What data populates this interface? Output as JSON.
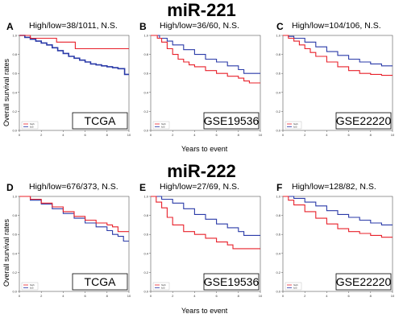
{
  "sections": [
    {
      "title": "miR-221",
      "y_label": "Overall survival rates",
      "x_label": "Years to event"
    },
    {
      "title": "miR-222",
      "y_label": "Overall survival rates",
      "x_label": "Years to event"
    }
  ],
  "colors": {
    "high": "#e8202a",
    "low": "#2a3aa8",
    "axis": "#555555"
  },
  "chart_data": [
    {
      "type": "line",
      "panel": "A",
      "title": "High/low=38/1011, N.S.",
      "dataset": "TCGA",
      "legend": [
        "high",
        "low"
      ],
      "xlim": [
        0,
        10
      ],
      "ylim": [
        0,
        1.0
      ],
      "x_ticks": [
        0,
        2,
        4,
        6,
        8,
        10
      ],
      "y_ticks": [
        0,
        0.2,
        0.4,
        0.6,
        0.8,
        1.0
      ],
      "series": [
        {
          "name": "high",
          "x": [
            0,
            1.0,
            1.0,
            3.4,
            3.4,
            5.1,
            5.1,
            10
          ],
          "y": [
            1.0,
            1.0,
            0.97,
            0.97,
            0.93,
            0.93,
            0.86,
            0.86
          ]
        },
        {
          "name": "low",
          "x": [
            0,
            0.5,
            1,
            1.5,
            2,
            2.5,
            3,
            3.5,
            4,
            4.5,
            5,
            5.5,
            6,
            6.5,
            7,
            7.5,
            8,
            8.5,
            9,
            9.4,
            9.6,
            10
          ],
          "y": [
            1.0,
            0.98,
            0.96,
            0.94,
            0.92,
            0.9,
            0.87,
            0.84,
            0.81,
            0.78,
            0.76,
            0.74,
            0.72,
            0.7,
            0.69,
            0.68,
            0.67,
            0.66,
            0.65,
            0.65,
            0.59,
            0.59
          ]
        }
      ]
    },
    {
      "type": "line",
      "panel": "B",
      "title": "High/low=36/60, N.S.",
      "dataset": "GSE19536",
      "legend": [
        "high",
        "low"
      ],
      "xlim": [
        0,
        10
      ],
      "ylim": [
        0,
        1.0
      ],
      "x_ticks": [
        0,
        2,
        4,
        6,
        8,
        10
      ],
      "y_ticks": [
        0,
        0.2,
        0.4,
        0.6,
        0.8,
        1.0
      ],
      "series": [
        {
          "name": "high",
          "x": [
            0,
            0.6,
            1,
            1.5,
            2,
            2.5,
            3,
            3.5,
            4,
            5,
            6,
            7,
            8,
            8.5,
            9,
            10
          ],
          "y": [
            1.0,
            0.97,
            0.93,
            0.86,
            0.8,
            0.75,
            0.72,
            0.69,
            0.67,
            0.63,
            0.6,
            0.57,
            0.55,
            0.52,
            0.5,
            0.5
          ]
        },
        {
          "name": "low",
          "x": [
            0,
            0.8,
            1.5,
            2,
            3,
            4,
            5,
            6,
            7,
            8,
            8.5,
            10
          ],
          "y": [
            1.0,
            0.97,
            0.94,
            0.9,
            0.85,
            0.8,
            0.75,
            0.72,
            0.68,
            0.64,
            0.6,
            0.6
          ]
        }
      ]
    },
    {
      "type": "line",
      "panel": "C",
      "title": "High/low=104/106, N.S.",
      "dataset": "GSE22220",
      "legend": [
        "high",
        "low"
      ],
      "xlim": [
        0,
        10
      ],
      "ylim": [
        0,
        1.0
      ],
      "x_ticks": [
        0,
        2,
        4,
        6,
        8,
        10
      ],
      "y_ticks": [
        0,
        0.2,
        0.4,
        0.6,
        0.8,
        1.0
      ],
      "series": [
        {
          "name": "high",
          "x": [
            0,
            0.5,
            1,
            1.5,
            2,
            2.5,
            3,
            4,
            5,
            6,
            7,
            8,
            9,
            10
          ],
          "y": [
            1.0,
            0.97,
            0.94,
            0.9,
            0.86,
            0.82,
            0.78,
            0.72,
            0.67,
            0.63,
            0.6,
            0.59,
            0.58,
            0.58
          ]
        },
        {
          "name": "low",
          "x": [
            0,
            0.5,
            1,
            2,
            3,
            4,
            5,
            6,
            7,
            8,
            9,
            10
          ],
          "y": [
            1.0,
            0.99,
            0.97,
            0.93,
            0.88,
            0.83,
            0.79,
            0.75,
            0.72,
            0.7,
            0.68,
            0.68
          ]
        }
      ]
    },
    {
      "type": "line",
      "panel": "D",
      "title": "High/low=676/373, N.S.",
      "dataset": "TCGA",
      "legend": [
        "high",
        "low"
      ],
      "xlim": [
        0,
        10
      ],
      "ylim": [
        0,
        1.0
      ],
      "x_ticks": [
        0,
        2,
        4,
        6,
        8,
        10
      ],
      "y_ticks": [
        0,
        0.2,
        0.4,
        0.6,
        0.8,
        1.0
      ],
      "series": [
        {
          "name": "high",
          "x": [
            0,
            1,
            2,
            3,
            4,
            5,
            6,
            7,
            8,
            8.5,
            9,
            10
          ],
          "y": [
            1.0,
            0.97,
            0.93,
            0.89,
            0.84,
            0.79,
            0.75,
            0.72,
            0.7,
            0.68,
            0.63,
            0.63
          ]
        },
        {
          "name": "low",
          "x": [
            0,
            1,
            2,
            3,
            4,
            5,
            6,
            7,
            8,
            8.5,
            9,
            9.5,
            10
          ],
          "y": [
            1.0,
            0.96,
            0.92,
            0.87,
            0.82,
            0.77,
            0.72,
            0.68,
            0.64,
            0.6,
            0.58,
            0.53,
            0.53
          ]
        }
      ]
    },
    {
      "type": "line",
      "panel": "E",
      "title": "High/low=27/69, N.S.",
      "dataset": "GSE19536",
      "legend": [
        "high",
        "low"
      ],
      "xlim": [
        0,
        10
      ],
      "ylim": [
        0,
        1.0
      ],
      "x_ticks": [
        0,
        2,
        4,
        6,
        8,
        10
      ],
      "y_ticks": [
        0,
        0.2,
        0.4,
        0.6,
        0.8,
        1.0
      ],
      "series": [
        {
          "name": "high",
          "x": [
            0,
            0.5,
            1,
            1.5,
            2,
            3,
            4,
            5,
            6,
            7,
            7.5,
            10
          ],
          "y": [
            1.0,
            0.94,
            0.88,
            0.78,
            0.7,
            0.63,
            0.6,
            0.56,
            0.52,
            0.49,
            0.45,
            0.45
          ]
        },
        {
          "name": "low",
          "x": [
            0,
            1,
            2,
            3,
            4,
            5,
            6,
            7,
            8,
            8.5,
            10
          ],
          "y": [
            1.0,
            0.97,
            0.93,
            0.87,
            0.81,
            0.76,
            0.71,
            0.67,
            0.63,
            0.59,
            0.59
          ]
        }
      ]
    },
    {
      "type": "line",
      "panel": "F",
      "title": "High/low=128/82, N.S.",
      "dataset": "GSE22220",
      "legend": [
        "high",
        "low"
      ],
      "xlim": [
        0,
        10
      ],
      "ylim": [
        0,
        1.0
      ],
      "x_ticks": [
        0,
        2,
        4,
        6,
        8,
        10
      ],
      "y_ticks": [
        0,
        0.2,
        0.4,
        0.6,
        0.8,
        1.0
      ],
      "series": [
        {
          "name": "high",
          "x": [
            0,
            0.5,
            1,
            2,
            3,
            4,
            5,
            6,
            7,
            8,
            9,
            10
          ],
          "y": [
            1.0,
            0.96,
            0.91,
            0.84,
            0.77,
            0.71,
            0.66,
            0.63,
            0.61,
            0.59,
            0.57,
            0.57
          ]
        },
        {
          "name": "low",
          "x": [
            0,
            1,
            2,
            3,
            4,
            5,
            6,
            7,
            8,
            9,
            10
          ],
          "y": [
            1.0,
            0.98,
            0.94,
            0.9,
            0.85,
            0.81,
            0.78,
            0.75,
            0.72,
            0.7,
            0.7
          ]
        }
      ]
    }
  ]
}
